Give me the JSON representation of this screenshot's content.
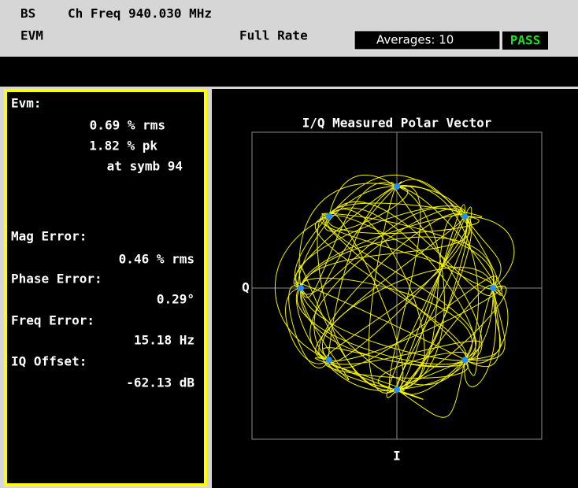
{
  "header": {
    "standard": "BS",
    "channel_freq": "Ch Freq 940.030 MHz",
    "measurement": "EVM",
    "rate": "Full Rate",
    "averages": "Averages: 10",
    "status": "PASS"
  },
  "results": [
    {
      "label": "Evm:",
      "lines": [
        "0.69 % rms",
        "1.82 % pk",
        "at symb 94"
      ]
    },
    {
      "label": "Mag Error:",
      "lines": [
        "0.46 % rms"
      ]
    },
    {
      "label": "Phase Error:",
      "lines": [
        "0.29°"
      ]
    },
    {
      "label": "Freq Error:",
      "lines": [
        "15.18 Hz"
      ]
    },
    {
      "label": "IQ Offset:",
      "lines": [
        "-62.13 dB"
      ]
    }
  ],
  "plot": {
    "title": "I/Q Measured Polar Vector",
    "y_label": "Q",
    "x_label": "I"
  }
}
